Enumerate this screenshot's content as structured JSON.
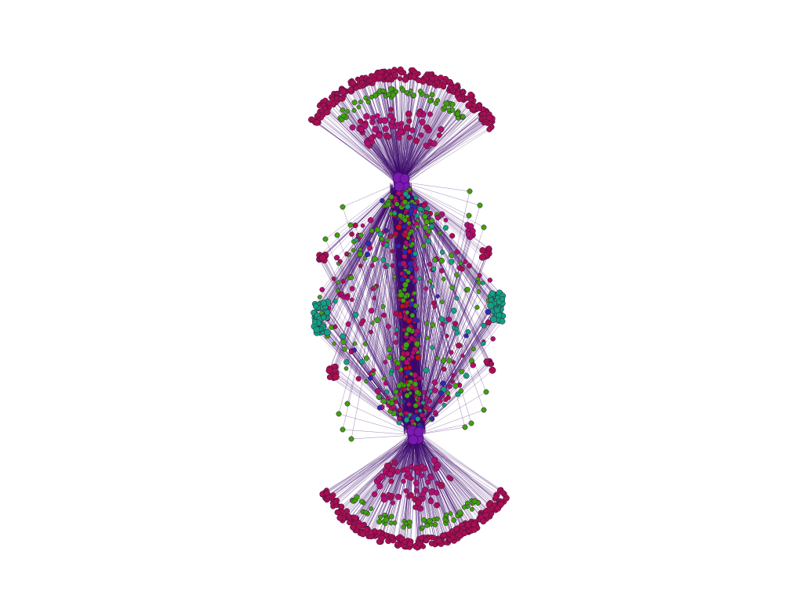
{
  "colors": {
    "background": "#ffffff",
    "edge": "#3d0a6b",
    "hub": "#7a1bb0",
    "ring_node": "#a8104f",
    "green_node": "#3fa010",
    "teal_node": "#12a07e",
    "magenta_node": "#b0106a",
    "blue_node": "#2a2ab0",
    "red_node": "#c0101c",
    "node_stroke": "#3a1040"
  }
}
